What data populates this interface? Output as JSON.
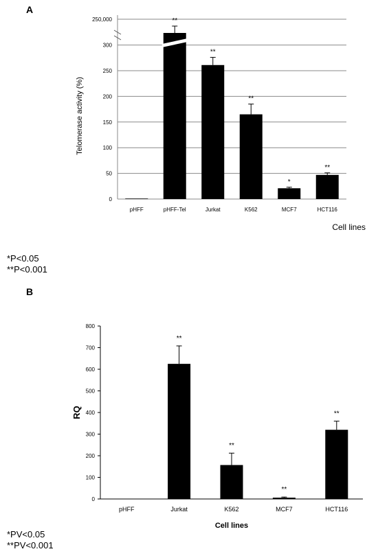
{
  "panel_a": {
    "label": "A",
    "notes": [
      "*P<0.05",
      "**P<0.001"
    ]
  },
  "panel_b": {
    "label": "B",
    "notes": [
      "*PV<0.05",
      "**PV<0.001"
    ]
  },
  "chart_data": [
    {
      "type": "bar",
      "title": "",
      "ylabel": "Telomerase activity  (%)",
      "xlabel": "Cell lines",
      "categories": [
        "pHFF",
        "pHFF-Tel",
        "Jurkat",
        "K562",
        "MCF7",
        "HCT116"
      ],
      "values": [
        1,
        250000,
        261,
        165,
        21,
        47
      ],
      "errors": [
        0,
        0,
        15,
        20,
        2,
        4
      ],
      "significance": [
        "",
        "**",
        "**",
        "**",
        "*",
        "**"
      ],
      "yticks": [
        "0",
        "50",
        "100",
        "150",
        "200",
        "250",
        "300"
      ],
      "axis_break": {
        "below": 325,
        "label": "250,000"
      },
      "ylim": [
        0,
        325
      ],
      "grid": true,
      "bar_color": "#000000"
    },
    {
      "type": "bar",
      "title": "",
      "ylabel": "RQ",
      "xlabel": "Cell lines",
      "categories": [
        "pHFF",
        "Jurkat",
        "K562",
        "MCF7",
        "HCT116"
      ],
      "values": [
        0,
        625,
        157,
        6,
        320
      ],
      "errors": [
        0,
        83,
        55,
        3,
        40
      ],
      "significance": [
        "",
        "**",
        "**",
        "**",
        "**"
      ],
      "yticks": [
        "0",
        "100",
        "200",
        "300",
        "400",
        "500",
        "600",
        "700",
        "800"
      ],
      "ylim": [
        0,
        800
      ],
      "grid": false,
      "bar_color": "#000000"
    }
  ]
}
